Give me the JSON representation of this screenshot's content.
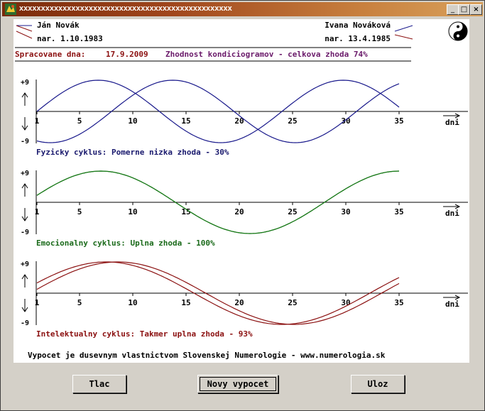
{
  "window": {
    "title": "xxxxxxxxxxxxxxxxxxxxxxxxxxxxxxxxxxxxxxxxxxxxxxxxx",
    "minimize": "_",
    "maximize": "□",
    "close": "×"
  },
  "persons": {
    "left": {
      "name": "Ján Novák",
      "birth": "nar. 1.10.1983",
      "color": "#1a1a8c"
    },
    "right": {
      "name": "Ivana Nováková",
      "birth": "nar. 13.4.1985",
      "color": "#8b1010"
    }
  },
  "summary": {
    "date_label": "Spracovane dna:",
    "date_value": "17.9.2009",
    "overall": "Zhodnost kondiciogramov - celkova zhoda 74%"
  },
  "chart_data": [
    {
      "type": "line",
      "name": "fyzicky",
      "cycle_days": 23,
      "x": [
        1,
        35
      ],
      "xticks": [
        1,
        5,
        10,
        15,
        20,
        25,
        30,
        35
      ],
      "xlabel": "dni",
      "ylim": [
        -9,
        9
      ],
      "yticks": [
        "+9",
        "-9"
      ],
      "series": [
        {
          "color": "#1a1a8c",
          "peaks_at_day": 6.75
        },
        {
          "color": "#1a1a8c",
          "peaks_at_day": 13.75
        }
      ],
      "caption": "Fyzicky cyklus: Pomerne nizka zhoda -   30%",
      "caption_color": "#1a1a6e"
    },
    {
      "type": "line",
      "name": "emocionalny",
      "cycle_days": 28,
      "x": [
        1,
        35
      ],
      "xticks": [
        1,
        5,
        10,
        15,
        20,
        25,
        30,
        35
      ],
      "xlabel": "dni",
      "ylim": [
        -9,
        9
      ],
      "yticks": [
        "+9",
        "-9"
      ],
      "series": [
        {
          "color": "#1a7a1a",
          "peaks_at_day": 7
        },
        {
          "color": "#1a7a1a",
          "peaks_at_day": 7
        }
      ],
      "caption": "Emocionalny cyklus: Uplna zhoda -   100%",
      "caption_color": "#1a6a1a"
    },
    {
      "type": "line",
      "name": "intelektualny",
      "cycle_days": 33,
      "x": [
        1,
        35
      ],
      "xticks": [
        1,
        5,
        10,
        15,
        20,
        25,
        30,
        35
      ],
      "xlabel": "dni",
      "ylim": [
        -9,
        9
      ],
      "yticks": [
        "+9",
        "-9"
      ],
      "series": [
        {
          "color": "#8b1010",
          "peaks_at_day": 7.5
        },
        {
          "color": "#8b1010",
          "peaks_at_day": 8.6
        }
      ],
      "caption": "Intelektualny cyklus: Takmer uplna zhoda -   93%",
      "caption_color": "#8b1010"
    }
  ],
  "footer": "Vypocet je dusevnym vlastnictvom Slovenskej Numerologie - www.numerologia.sk",
  "buttons": {
    "print": "Tlac",
    "new": "Novy vypocet",
    "save": "Uloz"
  }
}
